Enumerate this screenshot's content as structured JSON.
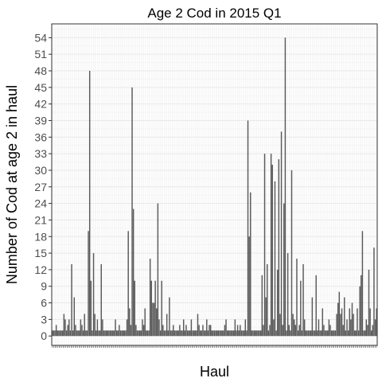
{
  "chart_data": {
    "type": "bar",
    "title": "Age 2 Cod in 2015 Q1",
    "xlabel": "Haul",
    "ylabel": "Number of Cod at age 2 in haul",
    "ylim": [
      -1.7,
      56.5
    ],
    "yticks": [
      0,
      3,
      6,
      9,
      12,
      15,
      18,
      21,
      24,
      27,
      30,
      33,
      36,
      39,
      42,
      45,
      48,
      51,
      54
    ],
    "grid": true,
    "bar_color": "#595959",
    "background": "#ffffff",
    "grid_color": "#ebebeb",
    "values": [
      1,
      1,
      1,
      2,
      1,
      1,
      1,
      1,
      1,
      4,
      3,
      1,
      2,
      3,
      1,
      13,
      1,
      7,
      2,
      1,
      1,
      1,
      3,
      2,
      1,
      4,
      1,
      1,
      19,
      48,
      10,
      1,
      15,
      4,
      1,
      3,
      1,
      1,
      13,
      3,
      1,
      1,
      1,
      1,
      1,
      1,
      1,
      1,
      1,
      3,
      1,
      1,
      2,
      1,
      1,
      1,
      1,
      1,
      3,
      19,
      5,
      2,
      45,
      23,
      10,
      2,
      1,
      1,
      1,
      1,
      3,
      2,
      5,
      1,
      1,
      1,
      14,
      10,
      6,
      6,
      10,
      5,
      24,
      3,
      1,
      10,
      2,
      1,
      1,
      4,
      1,
      7,
      1,
      1,
      2,
      1,
      1,
      1,
      1,
      2,
      1,
      1,
      3,
      1,
      2,
      1,
      1,
      1,
      3,
      1,
      1,
      1,
      1,
      4,
      2,
      1,
      1,
      2,
      1,
      1,
      3,
      1,
      2,
      2,
      1,
      1,
      1,
      1,
      1,
      1,
      1,
      1,
      1,
      1,
      2,
      3,
      1,
      1,
      1,
      1,
      1,
      1,
      3,
      1,
      2,
      1,
      2,
      1,
      1,
      1,
      3,
      1,
      39,
      18,
      26,
      1,
      1,
      1,
      1,
      1,
      1,
      1,
      1,
      11,
      2,
      33,
      7,
      13,
      1,
      2,
      33,
      31,
      3,
      28,
      1,
      12,
      32,
      4,
      37,
      2,
      24,
      54,
      1,
      15,
      2,
      1,
      30,
      4,
      3,
      2,
      14,
      1,
      2,
      10,
      1,
      13,
      3,
      1,
      1,
      1,
      1,
      1,
      7,
      1,
      1,
      11,
      1,
      3,
      1,
      1,
      5,
      2,
      1,
      1,
      1,
      3,
      2,
      1,
      1,
      1,
      1,
      4,
      6,
      8,
      4,
      5,
      2,
      7,
      1,
      3,
      1,
      5,
      3,
      6,
      4,
      1,
      1,
      5,
      1,
      9,
      11,
      19,
      1,
      1,
      3,
      2,
      12,
      5,
      1,
      2,
      16,
      3,
      5
    ],
    "x_tick_count": 245
  }
}
